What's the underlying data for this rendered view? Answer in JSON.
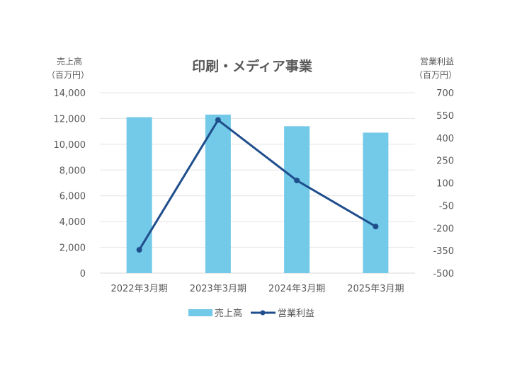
{
  "chart_data": {
    "type": "bar+line",
    "title": "印刷・メディア事業",
    "categories": [
      "2022年3月期",
      "2023年3月期",
      "2024年3月期",
      "2025年3月期"
    ],
    "y_left": {
      "label_line1": "売上高",
      "label_line2": "（百万円）",
      "min": 0,
      "max": 14000,
      "step": 2000,
      "ticks": [
        "0",
        "2,000",
        "4,000",
        "6,000",
        "8,000",
        "10,000",
        "12,000",
        "14,000"
      ]
    },
    "y_right": {
      "label_line1": "営業利益",
      "label_line2": "（百万円）",
      "min": -500,
      "max": 700,
      "step": 150,
      "ticks": [
        "-500",
        "-350",
        "-200",
        "-50",
        "100",
        "250",
        "400",
        "550",
        "700"
      ]
    },
    "series": [
      {
        "name": "売上高",
        "type": "bar",
        "axis": "left",
        "color": "#73C9E8",
        "values": [
          12100,
          12300,
          11400,
          10900
        ]
      },
      {
        "name": "営業利益",
        "type": "line",
        "axis": "right",
        "color": "#1F4E8C",
        "values": [
          -345,
          518,
          116,
          -190
        ]
      }
    ],
    "grid": true,
    "legend_position": "bottom"
  }
}
